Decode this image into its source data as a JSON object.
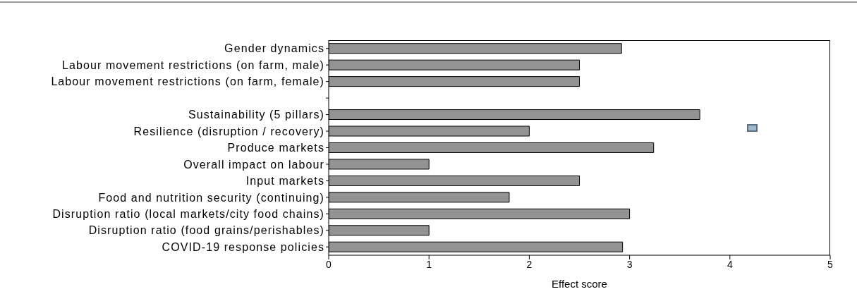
{
  "chart_data": {
    "type": "bar",
    "orientation": "horizontal",
    "xlabel": "Effect score",
    "categories": [
      "Gender dynamics",
      "Labour movement restrictions (on farm, male)",
      "Labour movement restrictions (on farm, female)",
      null,
      "Sustainability (5 pillars)",
      "Resilience (disruption / recovery)",
      "Produce markets",
      "Overall impact on labour",
      "Input markets",
      "Food and nutrition security (continuing)",
      "Disruption ratio (local markets/city food chains)",
      "Disruption ratio (food grains/perishables)",
      "COVID-19 response policies"
    ],
    "values": [
      2.92,
      2.5,
      2.5,
      null,
      3.7,
      2.0,
      3.24,
      1.0,
      2.5,
      1.8,
      3.0,
      1.0,
      2.93
    ],
    "color": "#939393",
    "xlim": [
      0,
      5
    ],
    "xticks": [
      0,
      1,
      2,
      3,
      4,
      5
    ]
  }
}
